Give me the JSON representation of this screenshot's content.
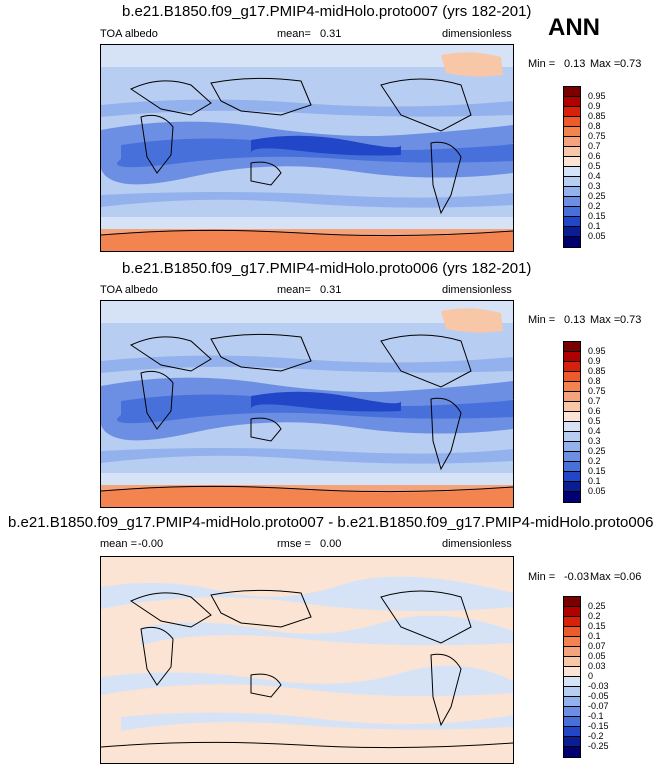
{
  "season": "ANN",
  "panels": [
    {
      "title": "b.e21.B1850.f09_g17.PMIP4-midHolo.proto007 (yrs 182-201)",
      "left_label": "TOA albedo",
      "mean_label": "mean=",
      "mean_value": "0.31",
      "units": "dimensionless",
      "min_label": "Min =",
      "min_value": "0.13",
      "max_label": "Max =",
      "max_value": "0.73",
      "levels": [
        "0.95",
        "0.9",
        "0.85",
        "0.8",
        "0.75",
        "0.7",
        "0.6",
        "0.5",
        "0.4",
        "0.3",
        "0.25",
        "0.2",
        "0.15",
        "0.1",
        "0.05"
      ],
      "colors": [
        "#7a0000",
        "#b00000",
        "#d8200b",
        "#ee5a2a",
        "#f3844f",
        "#f4a47c",
        "#f8c7a8",
        "#fbe4d3",
        "#d6e3f7",
        "#b7cdf2",
        "#93b1ec",
        "#6c8fe3",
        "#4770db",
        "#2146c8",
        "#0a1d94",
        "#000070"
      ]
    },
    {
      "title": "b.e21.B1850.f09_g17.PMIP4-midHolo.proto006 (yrs 182-201)",
      "left_label": "TOA albedo",
      "mean_label": "mean=",
      "mean_value": "0.31",
      "units": "dimensionless",
      "min_label": "Min =",
      "min_value": "0.13",
      "max_label": "Max =",
      "max_value": "0.73",
      "levels": [
        "0.95",
        "0.9",
        "0.85",
        "0.8",
        "0.75",
        "0.7",
        "0.6",
        "0.5",
        "0.4",
        "0.3",
        "0.25",
        "0.2",
        "0.15",
        "0.1",
        "0.05"
      ],
      "colors": [
        "#7a0000",
        "#b00000",
        "#d8200b",
        "#ee5a2a",
        "#f3844f",
        "#f4a47c",
        "#f8c7a8",
        "#fbe4d3",
        "#d6e3f7",
        "#b7cdf2",
        "#93b1ec",
        "#6c8fe3",
        "#4770db",
        "#2146c8",
        "#0a1d94",
        "#000070"
      ]
    },
    {
      "title": "b.e21.B1850.f09_g17.PMIP4-midHolo.proto007 - b.e21.B1850.f09_g17.PMIP4-midHolo.proto006",
      "left_label": "mean =",
      "left_value": "-0.00",
      "mean_label": "rmse =",
      "mean_value": "0.00",
      "units": "dimensionless",
      "min_label": "Min =",
      "min_value": "-0.03",
      "max_label": "Max =",
      "max_value": "0.06",
      "levels": [
        "0.25",
        "0.2",
        "0.15",
        "0.1",
        "0.07",
        "0.05",
        "0.03",
        "0",
        "-0.03",
        "-0.05",
        "-0.07",
        "-0.1",
        "-0.15",
        "-0.2",
        "-0.25"
      ],
      "colors": [
        "#7a0000",
        "#b00000",
        "#d8200b",
        "#ee5a2a",
        "#f3844f",
        "#f4a47c",
        "#f8c7a8",
        "#fbe4d3",
        "#d6e3f7",
        "#b7cdf2",
        "#93b1ec",
        "#6c8fe3",
        "#4770db",
        "#2146c8",
        "#0a1d94",
        "#000070"
      ]
    }
  ]
}
